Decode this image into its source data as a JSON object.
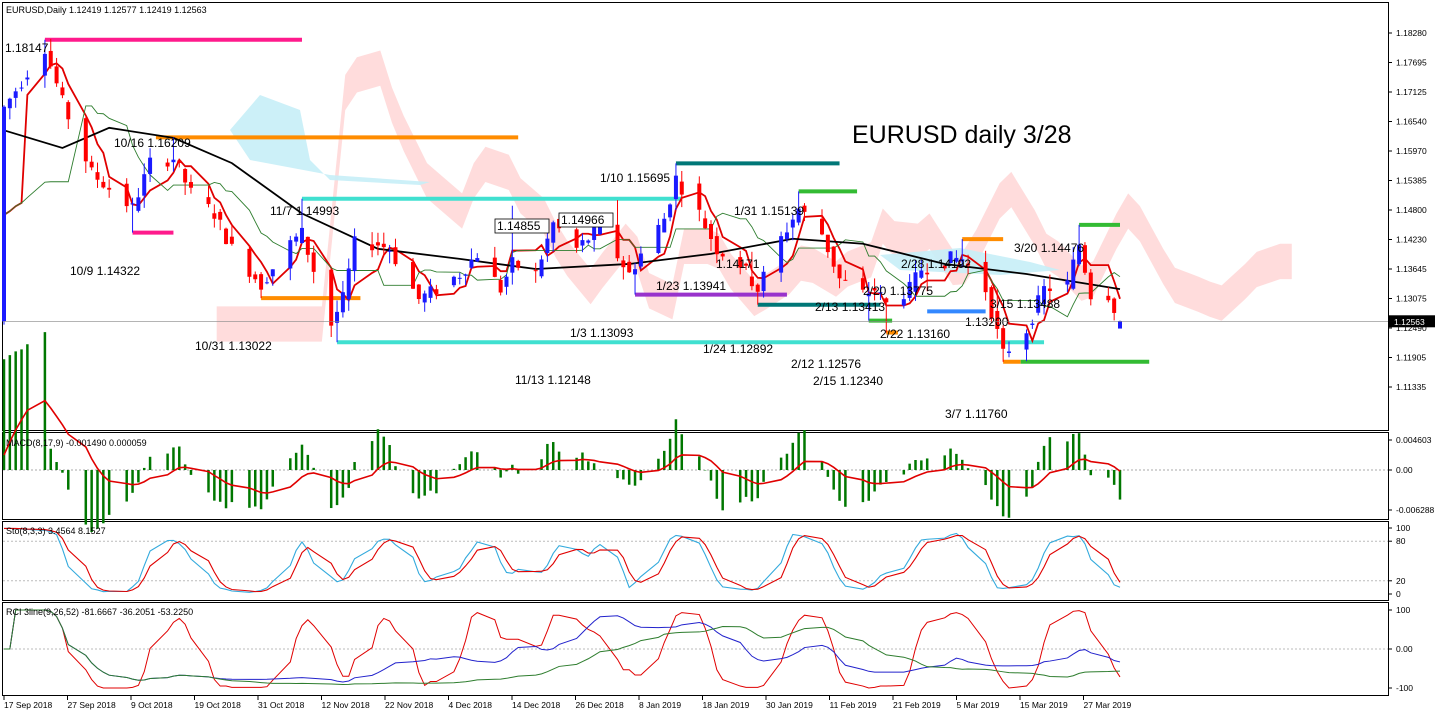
{
  "header": {
    "symbol_info": "EURUSD,Daily  1.12419 1.12577 1.12419 1.12563",
    "title": "EURUSD daily 3/28"
  },
  "price_axis": {
    "ticks": [
      "1.18280",
      "1.17695",
      "1.17125",
      "1.16540",
      "1.15970",
      "1.15385",
      "1.14800",
      "1.14230",
      "1.13645",
      "1.13075",
      "1.12490",
      "1.11905",
      "1.11335"
    ],
    "current_price": "1.12563"
  },
  "date_axis": {
    "ticks": [
      "17 Sep 2018",
      "27 Sep 2018",
      "9 Oct 2018",
      "19 Oct 2018",
      "31 Oct 2018",
      "12 Nov 2018",
      "22 Nov 2018",
      "4 Dec 2018",
      "14 Dec 2018",
      "26 Dec 2018",
      "8 Jan 2019",
      "18 Jan 2019",
      "30 Jan 2019",
      "11 Feb 2019",
      "21 Feb 2019",
      "5 Mar 2019",
      "15 Mar 2019",
      "27 Mar 2019"
    ]
  },
  "annotations": [
    {
      "id": "a0",
      "text": "1.18147"
    },
    {
      "id": "a1",
      "text": "10/16 1.16209"
    },
    {
      "id": "a2",
      "text": "10/9 1.14322"
    },
    {
      "id": "a3",
      "text": "11/7 1.14993"
    },
    {
      "id": "a4",
      "text": "10/31 1.13022"
    },
    {
      "id": "a5",
      "text": "11/13 1.12148"
    },
    {
      "id": "a6",
      "text": "1.14855"
    },
    {
      "id": "a7",
      "text": "1.14966"
    },
    {
      "id": "a8",
      "text": "1/10 1.15695"
    },
    {
      "id": "a9",
      "text": "1/3 1.13093"
    },
    {
      "id": "a10",
      "text": "1/23 1.13941"
    },
    {
      "id": "a11",
      "text": "1/31 1.15139"
    },
    {
      "id": "a12",
      "text": "1.14171"
    },
    {
      "id": "a13",
      "text": "1/24 1.12892"
    },
    {
      "id": "a14",
      "text": "2/13 1.13413"
    },
    {
      "id": "a15",
      "text": "2/12 1.12576"
    },
    {
      "id": "a16",
      "text": "2/15 1.12340"
    },
    {
      "id": "a17",
      "text": "2/20 1.13775"
    },
    {
      "id": "a18",
      "text": "2/22 1.13160"
    },
    {
      "id": "a19",
      "text": "2/28 1.14192"
    },
    {
      "id": "a20",
      "text": "3/20 1.14476"
    },
    {
      "id": "a21",
      "text": "3/15 1.13488"
    },
    {
      "id": "a22",
      "text": "1.13200"
    },
    {
      "id": "a23",
      "text": "3/7 1.11760"
    }
  ],
  "macd": {
    "label": "MACD(8,17,9) -0.001490 0.000059",
    "ticks": [
      "0.004603",
      "0.00",
      "-0.006288"
    ]
  },
  "stoch": {
    "label": "Sto(8,3,3) 3.4564 8.1527",
    "ticks": [
      "100",
      "80",
      "20",
      "0"
    ]
  },
  "rci": {
    "label": "RCI 3line(9,26,52) -81.6667 -36.2051 -53.2250",
    "ticks": [
      "100",
      "0.00",
      "-100"
    ]
  },
  "colors": {
    "bull": "#1a1aff",
    "bear": "#ff0000",
    "tenkan": "#e00000",
    "kijun": "#000000",
    "green_line": "#2e7d2e",
    "kumo_bear": "#ffd6d6",
    "kumo_bull": "#c6eef7",
    "macd_hist": "#007700",
    "macd_signal": "#e00000",
    "sto_main": "#33aadd",
    "sto_signal": "#e00000",
    "rci_short": "#e00000",
    "rci_mid": "#2222cc",
    "rci_long": "#2e7d2e",
    "magenta": "#ff1a8c",
    "orange": "#ff8c00",
    "teal": "#40e0d0",
    "purple": "#9933cc",
    "darkteal": "#007777",
    "green_seg": "#33bb33",
    "blue_seg": "#3388ff"
  },
  "chart_data": {
    "type": "candlestick",
    "title": "EURUSD daily 3/28",
    "symbol": "EURUSD",
    "timeframe": "Daily",
    "last_bar": {
      "open": 1.12419,
      "high": 1.12577,
      "low": 1.12419,
      "close": 1.12563
    },
    "y_range": [
      1.1105,
      1.1875
    ],
    "x_range": [
      "2018-09-17",
      "2019-03-27"
    ],
    "marked_levels": [
      {
        "date": "2018-09-24",
        "price": 1.18147
      },
      {
        "date": "2018-10-16",
        "price": 1.16209
      },
      {
        "date": "2018-10-09",
        "price": 1.14322
      },
      {
        "date": "2018-11-07",
        "price": 1.14993
      },
      {
        "date": "2018-10-31",
        "price": 1.13022
      },
      {
        "date": "2018-11-13",
        "price": 1.12148
      },
      {
        "date": "2018-12-13",
        "price": 1.14855
      },
      {
        "date": "2018-12-31",
        "price": 1.14966
      },
      {
        "date": "2019-01-10",
        "price": 1.15695
      },
      {
        "date": "2019-01-03",
        "price": 1.13093
      },
      {
        "date": "2019-01-23",
        "price": 1.13941
      },
      {
        "date": "2019-01-31",
        "price": 1.15139
      },
      {
        "date": "2019-01-30",
        "price": 1.14171
      },
      {
        "date": "2019-01-24",
        "price": 1.12892
      },
      {
        "date": "2019-02-13",
        "price": 1.13413
      },
      {
        "date": "2019-02-12",
        "price": 1.12576
      },
      {
        "date": "2019-02-15",
        "price": 1.1234
      },
      {
        "date": "2019-02-20",
        "price": 1.13775
      },
      {
        "date": "2019-02-22",
        "price": 1.1316
      },
      {
        "date": "2019-02-28",
        "price": 1.14192
      },
      {
        "date": "2019-03-20",
        "price": 1.14476
      },
      {
        "date": "2019-03-15",
        "price": 1.13488
      },
      {
        "date": "2019-03-06",
        "price": 1.132
      },
      {
        "date": "2019-03-07",
        "price": 1.1176
      }
    ],
    "close_path": [
      [
        "2018-09-17",
        1.168
      ],
      [
        "2018-09-21",
        1.175
      ],
      [
        "2018-09-24",
        1.18
      ],
      [
        "2018-09-27",
        1.169
      ],
      [
        "2018-10-02",
        1.155
      ],
      [
        "2018-10-05",
        1.152
      ],
      [
        "2018-10-09",
        1.148
      ],
      [
        "2018-10-12",
        1.157
      ],
      [
        "2018-10-16",
        1.158
      ],
      [
        "2018-10-19",
        1.151
      ],
      [
        "2018-10-23",
        1.147
      ],
      [
        "2018-10-26",
        1.14
      ],
      [
        "2018-10-31",
        1.133
      ],
      [
        "2018-11-05",
        1.141
      ],
      [
        "2018-11-07",
        1.143
      ],
      [
        "2018-11-12",
        1.125
      ],
      [
        "2018-11-14",
        1.13
      ],
      [
        "2018-11-16",
        1.141
      ],
      [
        "2018-11-20",
        1.141
      ],
      [
        "2018-11-22",
        1.14
      ],
      [
        "2018-11-27",
        1.13
      ],
      [
        "2018-11-30",
        1.132
      ],
      [
        "2018-12-04",
        1.135
      ],
      [
        "2018-12-07",
        1.139
      ],
      [
        "2018-12-11",
        1.132
      ],
      [
        "2018-12-13",
        1.137
      ],
      [
        "2018-12-17",
        1.135
      ],
      [
        "2018-12-20",
        1.145
      ],
      [
        "2018-12-24",
        1.14
      ],
      [
        "2018-12-28",
        1.144
      ],
      [
        "2019-01-02",
        1.135
      ],
      [
        "2019-01-04",
        1.139
      ],
      [
        "2019-01-08",
        1.146
      ],
      [
        "2019-01-10",
        1.154
      ],
      [
        "2019-01-14",
        1.147
      ],
      [
        "2019-01-17",
        1.14
      ],
      [
        "2019-01-21",
        1.137
      ],
      [
        "2019-01-24",
        1.132
      ],
      [
        "2019-01-28",
        1.142
      ],
      [
        "2019-01-31",
        1.148
      ],
      [
        "2019-02-04",
        1.143
      ],
      [
        "2019-02-07",
        1.134
      ],
      [
        "2019-02-11",
        1.131
      ],
      [
        "2019-02-13",
        1.132
      ],
      [
        "2019-02-15",
        1.129
      ],
      [
        "2019-02-19",
        1.132
      ],
      [
        "2019-02-21",
        1.136
      ],
      [
        "2019-02-26",
        1.138
      ],
      [
        "2019-02-28",
        1.138
      ],
      [
        "2019-03-04",
        1.132
      ],
      [
        "2019-03-07",
        1.119
      ],
      [
        "2019-03-11",
        1.124
      ],
      [
        "2019-03-14",
        1.132
      ],
      [
        "2019-03-18",
        1.133
      ],
      [
        "2019-03-20",
        1.141
      ],
      [
        "2019-03-22",
        1.131
      ],
      [
        "2019-03-25",
        1.131
      ],
      [
        "2019-03-27",
        1.1256
      ]
    ],
    "kijun_path": [
      [
        "2018-09-17",
        1.1635
      ],
      [
        "2018-09-27",
        1.16
      ],
      [
        "2018-10-05",
        1.164
      ],
      [
        "2018-10-16",
        1.162
      ],
      [
        "2018-10-26",
        1.157
      ],
      [
        "2018-11-07",
        1.147
      ],
      [
        "2018-11-20",
        1.14
      ],
      [
        "2018-12-04",
        1.138
      ],
      [
        "2018-12-17",
        1.136
      ],
      [
        "2019-01-02",
        1.137
      ],
      [
        "2019-01-16",
        1.139
      ],
      [
        "2019-01-30",
        1.142
      ],
      [
        "2019-02-11",
        1.141
      ],
      [
        "2019-02-25",
        1.137
      ],
      [
        "2019-03-11",
        1.135
      ],
      [
        "2019-03-27",
        1.132
      ]
    ]
  }
}
